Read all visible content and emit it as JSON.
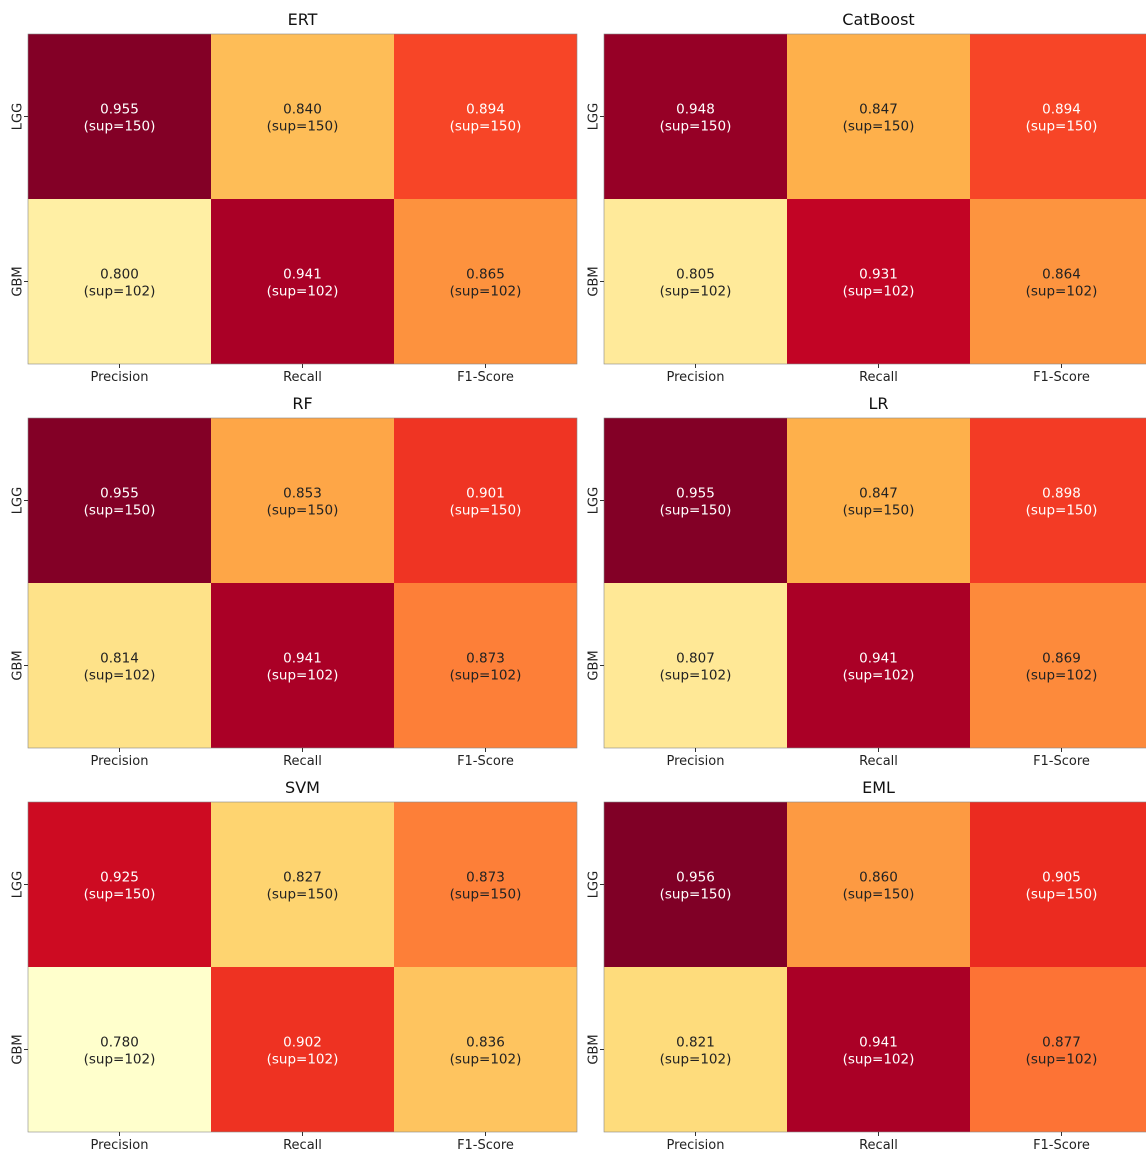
{
  "chart_data": [
    {
      "type": "heatmap",
      "title": "ERT",
      "rows": [
        "LGG",
        "GBM"
      ],
      "columns": [
        "Precision",
        "Recall",
        "F1-Score"
      ],
      "values": [
        [
          0.955,
          0.84,
          0.894
        ],
        [
          0.8,
          0.941,
          0.865
        ]
      ],
      "support": [
        150,
        102
      ]
    },
    {
      "type": "heatmap",
      "title": "CatBoost",
      "rows": [
        "LGG",
        "GBM"
      ],
      "columns": [
        "Precision",
        "Recall",
        "F1-Score"
      ],
      "values": [
        [
          0.948,
          0.847,
          0.894
        ],
        [
          0.805,
          0.931,
          0.864
        ]
      ],
      "support": [
        150,
        102
      ]
    },
    {
      "type": "heatmap",
      "title": "RF",
      "rows": [
        "LGG",
        "GBM"
      ],
      "columns": [
        "Precision",
        "Recall",
        "F1-Score"
      ],
      "values": [
        [
          0.955,
          0.853,
          0.901
        ],
        [
          0.814,
          0.941,
          0.873
        ]
      ],
      "support": [
        150,
        102
      ]
    },
    {
      "type": "heatmap",
      "title": "LR",
      "rows": [
        "LGG",
        "GBM"
      ],
      "columns": [
        "Precision",
        "Recall",
        "F1-Score"
      ],
      "values": [
        [
          0.955,
          0.847,
          0.898
        ],
        [
          0.807,
          0.941,
          0.869
        ]
      ],
      "support": [
        150,
        102
      ]
    },
    {
      "type": "heatmap",
      "title": "SVM",
      "rows": [
        "LGG",
        "GBM"
      ],
      "columns": [
        "Precision",
        "Recall",
        "F1-Score"
      ],
      "values": [
        [
          0.925,
          0.827,
          0.873
        ],
        [
          0.78,
          0.902,
          0.836
        ]
      ],
      "support": [
        150,
        102
      ]
    },
    {
      "type": "heatmap",
      "title": "EML",
      "rows": [
        "LGG",
        "GBM"
      ],
      "columns": [
        "Precision",
        "Recall",
        "F1-Score"
      ],
      "values": [
        [
          0.956,
          0.86,
          0.905
        ],
        [
          0.821,
          0.941,
          0.877
        ]
      ],
      "support": [
        150,
        102
      ]
    }
  ],
  "colormap": "YlOrRd",
  "colormap_stops": [
    "#ffffcc",
    "#ffeda0",
    "#fed976",
    "#feb24c",
    "#fd8d3c",
    "#fc4e2a",
    "#e31a1c",
    "#bd0026",
    "#800026"
  ],
  "text_colors": {
    "light": "#ffffff",
    "dark": "#222222"
  }
}
